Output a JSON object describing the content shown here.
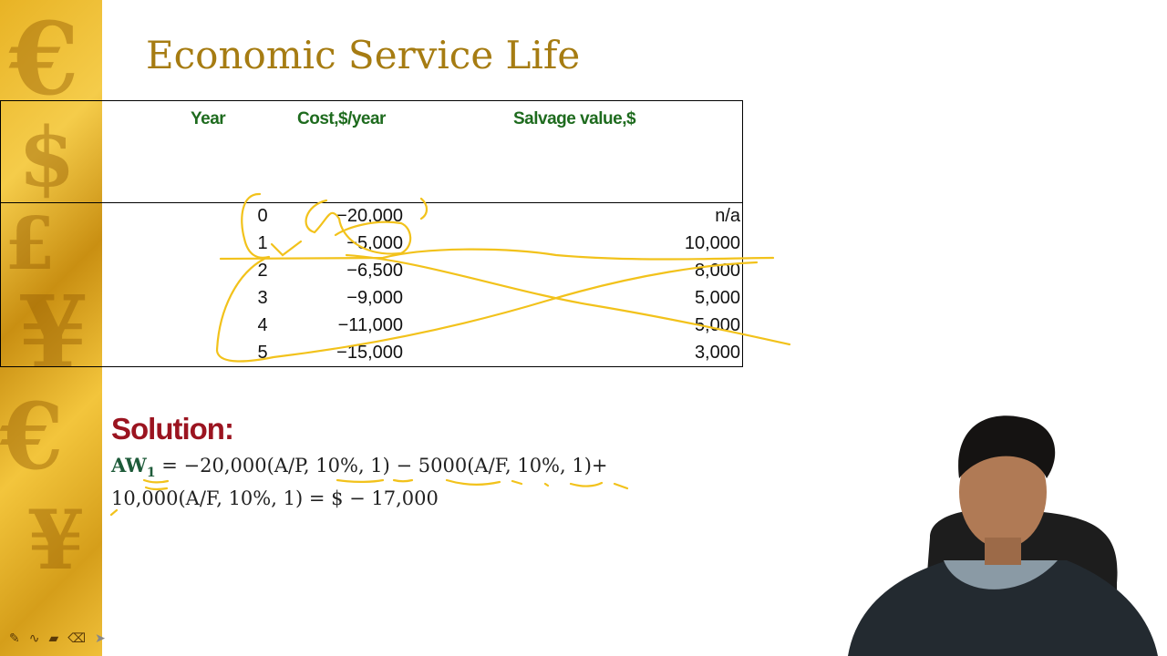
{
  "slide": {
    "title": "Economic Service Life",
    "table": {
      "headers": [
        "Year",
        "Cost,$/year",
        "Salvage value,$"
      ],
      "rows": [
        {
          "year": "0",
          "cost": "−20,000",
          "salvage": "n/a"
        },
        {
          "year": "1",
          "cost": "−5,000",
          "salvage": "10,000"
        },
        {
          "year": "2",
          "cost": "−6,500",
          "salvage": "8,000"
        },
        {
          "year": "3",
          "cost": "−9,000",
          "salvage": "5,000"
        },
        {
          "year": "4",
          "cost": "−11,000",
          "salvage": "5,000"
        },
        {
          "year": "5",
          "cost": "−15,000",
          "salvage": "3,000"
        }
      ]
    },
    "solution_label": "Solution:",
    "equation": {
      "lhs": "AW",
      "subscript": "1",
      "line1_rest": " = −20,000(A/P, 10%, 1) − 5000(A/F, 10%, 1)+",
      "line2": "10,000(A/F, 10%, 1) = $ − 17,000"
    }
  },
  "annotation_color": "#f2c21b",
  "toolbar": {
    "icons": [
      "pen-icon",
      "curve-icon",
      "highlighter-icon",
      "eraser-icon",
      "pointer-icon"
    ]
  }
}
